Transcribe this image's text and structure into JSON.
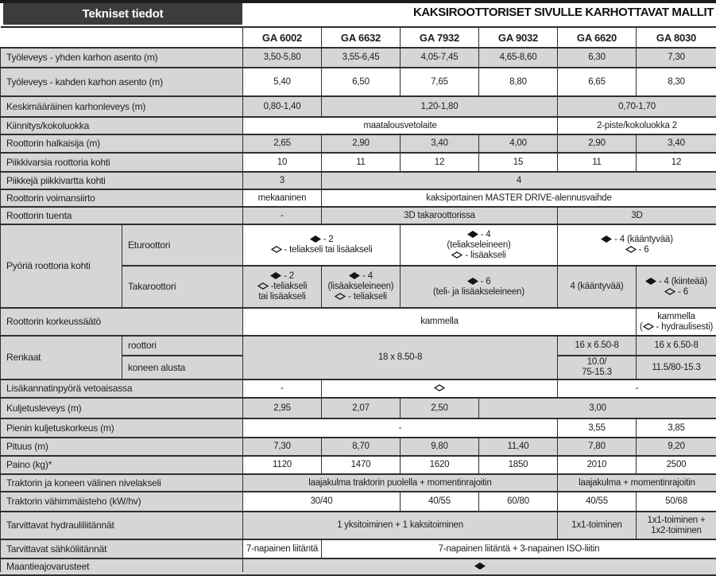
{
  "header": {
    "box_label": "Tekniset tiedot",
    "title": "KAKSIROOTTORISET SIVULLE KARHOTTAVAT MALLIT"
  },
  "columns": [
    "GA 6002",
    "GA 6632",
    "GA 7932",
    "GA 9032",
    "GA 6620",
    "GA 8030"
  ],
  "icons": {
    "solid_diamond": "◆",
    "open_diamond": "◇"
  },
  "colors": {
    "shade": "#d6d6d6",
    "header_box": "#3d3c3b",
    "border": "#2f2f2f"
  },
  "rows": [
    {
      "label": "Työleveys - yhden karhon asento (m)",
      "shaded": true,
      "cells": [
        {
          "t": "3,50-5,80"
        },
        {
          "t": "3,55-6,45"
        },
        {
          "t": "4,05-7,45"
        },
        {
          "t": "4,65-8,60"
        },
        {
          "t": "6,30"
        },
        {
          "t": "7,30"
        }
      ]
    },
    {
      "label": "Työleveys - kahden karhon asento (m)",
      "shaded": false,
      "cells": [
        {
          "t": "5,40"
        },
        {
          "t": "6,50"
        },
        {
          "t": "7,65"
        },
        {
          "t": "8,80"
        },
        {
          "t": "6,65"
        },
        {
          "t": "8,30"
        }
      ]
    },
    {
      "label": "Keskimääräinen karhonleveys (m)",
      "shaded": true,
      "cells": [
        {
          "t": "0,80-1,40"
        },
        {
          "t": "1,20-1,80",
          "cs": 3
        },
        {
          "t": "0,70-1,70",
          "cs": 2
        }
      ]
    },
    {
      "label": "Kiinnitys/kokoluokka",
      "shaded": false,
      "cells": [
        {
          "t": "maatalousvetolaite",
          "cs": 4
        },
        {
          "t": "2-piste/kokoluokka 2",
          "cs": 2
        }
      ]
    },
    {
      "label": "Roottorin halkaisija (m)",
      "shaded": true,
      "cells": [
        {
          "t": "2,65"
        },
        {
          "t": "2,90"
        },
        {
          "t": "3,40"
        },
        {
          "t": "4,00"
        },
        {
          "t": "2,90"
        },
        {
          "t": "3,40"
        }
      ]
    },
    {
      "label": "Piikkivarsia roottoria kohti",
      "shaded": false,
      "cells": [
        {
          "t": "10"
        },
        {
          "t": "11"
        },
        {
          "t": "12"
        },
        {
          "t": "15"
        },
        {
          "t": "11"
        },
        {
          "t": "12"
        }
      ]
    },
    {
      "label": "Piikkejä piikkivartta kohti",
      "shaded": true,
      "cells": [
        {
          "t": "3"
        },
        {
          "t": "4",
          "cs": 5
        }
      ]
    },
    {
      "label": "Roottorin voimansiirto",
      "shaded": false,
      "cells": [
        {
          "t": "mekaaninen"
        },
        {
          "t": "kaksiportainen MASTER DRIVE-alennusvaihde",
          "cs": 5
        }
      ]
    },
    {
      "label": "Roottorin tuenta",
      "shaded": true,
      "cells": [
        {
          "t": "-"
        },
        {
          "t": "3D takaroottorissa",
          "cs": 3
        },
        {
          "t": "3D",
          "cs": 2
        }
      ]
    },
    {
      "label": "Pyöriä roottoria kohti",
      "labelCols": 1,
      "labelRows": 2,
      "sublabel": "Eturoottori",
      "shaded": false,
      "cells": [
        {
          "t": "◆ - 2\n◇ - teliakseli tai lisäakseli",
          "cs": 2
        },
        {
          "t": "◆ - 4\n(teliakseleineen)\n◇ - lisäakseli",
          "cs": 2
        },
        {
          "t": "◆ - 4 (kääntyvää)\n◇ - 6",
          "cs": 2
        }
      ]
    },
    {
      "sublabel": "Takaroottori",
      "shaded": true,
      "cells": [
        {
          "t": "◆ - 2\n◇ -teliakseli\ntai lisäakseli"
        },
        {
          "t": "◆ - 4\n(lisäakseleineen)\n◇ - teliakseli"
        },
        {
          "t": "◆ - 6\n(teli- ja lisäakseleineen)",
          "cs": 2
        },
        {
          "t": "4 (kääntyvää)"
        },
        {
          "t": "◆ - 4 (kiinteää)\n◇ - 6"
        }
      ]
    },
    {
      "label": "Roottorin korkeussäätö",
      "shaded": false,
      "cells": [
        {
          "t": "kammella",
          "cs": 5
        },
        {
          "t": "kammella\n(◇ - hydraulisesti)"
        }
      ]
    },
    {
      "label": "Renkaat",
      "labelCols": 1,
      "labelRows": 2,
      "sublabel": "roottori",
      "shaded": true,
      "cells": [
        {
          "t": "18 x 8.50-8",
          "cs": 4,
          "rs": 2
        },
        {
          "t": "16 x 6.50-8"
        },
        {
          "t": "16 x 6.50-8"
        }
      ]
    },
    {
      "sublabel": "koneen alusta",
      "shaded": true,
      "cells": [
        {
          "t": "10.0/\n75-15.3"
        },
        {
          "t": "11.5/80-15.3"
        }
      ]
    },
    {
      "label": "Lisäkannatinpyörä vetoaisassa",
      "shaded": false,
      "cells": [
        {
          "t": "-"
        },
        {
          "t": "◇",
          "cs": 3
        },
        {
          "t": "-",
          "cs": 2
        }
      ]
    },
    {
      "label": "Kuljetusleveys (m)",
      "shaded": true,
      "cells": [
        {
          "t": "2,95"
        },
        {
          "t": "2,07"
        },
        {
          "t": "2,50"
        },
        {
          "t": "3,00",
          "cs": 3
        }
      ]
    },
    {
      "label": "Pienin kuljetuskorkeus (m)",
      "shaded": false,
      "cells": [
        {
          "t": "-",
          "cs": 4
        },
        {
          "t": "3,55"
        },
        {
          "t": "3,85"
        }
      ]
    },
    {
      "label": "Pituus (m)",
      "shaded": true,
      "cells": [
        {
          "t": "7,30"
        },
        {
          "t": "8,70"
        },
        {
          "t": "9,80"
        },
        {
          "t": "11,40"
        },
        {
          "t": "7,80"
        },
        {
          "t": "9,20"
        }
      ]
    },
    {
      "label": "Paino (kg)*",
      "shaded": false,
      "cells": [
        {
          "t": "1120"
        },
        {
          "t": "1470"
        },
        {
          "t": "1620"
        },
        {
          "t": "1850"
        },
        {
          "t": "2010"
        },
        {
          "t": "2500"
        }
      ]
    },
    {
      "label": "Traktorin ja koneen välinen nivelakseli",
      "shaded": true,
      "cells": [
        {
          "t": "laajakulma traktorin puolella + momentinrajoitin",
          "cs": 4
        },
        {
          "t": "laajakulma + momentinrajoitin",
          "cs": 2
        }
      ]
    },
    {
      "label": "Traktorin vähimmäisteho (kW/hv)",
      "shaded": false,
      "cells": [
        {
          "t": "30/40",
          "cs": 2
        },
        {
          "t": "40/55"
        },
        {
          "t": "60/80"
        },
        {
          "t": "40/55"
        },
        {
          "t": "50/68"
        }
      ]
    },
    {
      "label": "Tarvittavat hydrauliliitännät",
      "shaded": true,
      "cells": [
        {
          "t": "1 yksitoiminen + 1 kaksitoiminen",
          "cs": 4
        },
        {
          "t": "1x1-toiminen"
        },
        {
          "t": "1x1-toiminen +\n1x2-toiminen"
        }
      ]
    },
    {
      "label": "Tarvittavat sähköliitännät",
      "shaded": false,
      "cells": [
        {
          "t": "7-napainen liitäntä"
        },
        {
          "t": "7-napainen liitäntä + 3-napainen ISO-liitin",
          "cs": 5
        }
      ]
    },
    {
      "label": "Maantieajovarusteet",
      "shaded": true,
      "cells": [
        {
          "t": "◆",
          "cs": 6
        }
      ]
    }
  ]
}
